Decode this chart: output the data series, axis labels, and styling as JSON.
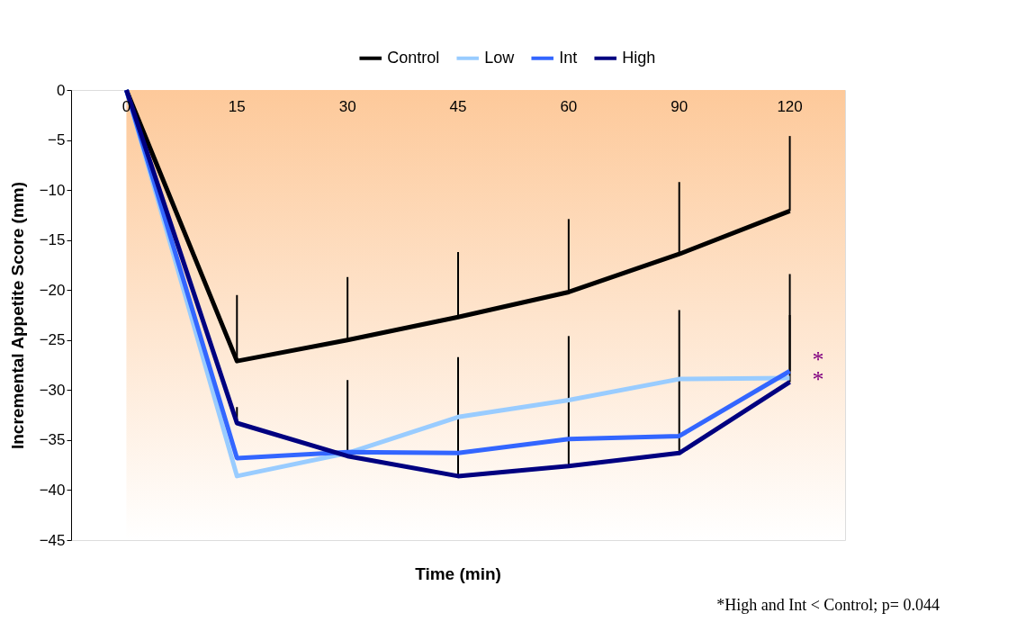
{
  "chart_data": {
    "type": "line",
    "xlabel": "Time (min)",
    "ylabel": "Incremental Appetite Score (mm)",
    "categories": [
      "0",
      "15",
      "30",
      "45",
      "60",
      "90",
      "120"
    ],
    "ylim": [
      -45,
      0
    ],
    "yticks": [
      -45,
      -40,
      -35,
      -30,
      -25,
      -20,
      -15,
      -10,
      -5,
      0
    ],
    "legend": "top",
    "line_style": "solid",
    "series": [
      {
        "name": "Control",
        "color": "#000000",
        "values": [
          0,
          -27.1,
          -25.0,
          -22.7,
          -20.2,
          -16.4,
          -12.1
        ],
        "errors": [
          null,
          [
            -27.1,
            -20.5
          ],
          [
            -25.0,
            -18.7
          ],
          [
            -22.7,
            -16.2
          ],
          [
            -20.2,
            -12.9
          ],
          [
            -16.4,
            -9.2
          ],
          [
            -12.1,
            -4.6
          ]
        ]
      },
      {
        "name": "Low",
        "color": "#99ccff",
        "values": [
          0,
          -38.6,
          -36.3,
          -32.7,
          -31.0,
          -28.9,
          -28.8
        ]
      },
      {
        "name": "Int",
        "color": "#3366ff",
        "values": [
          0,
          -36.8,
          -36.2,
          -36.3,
          -34.9,
          -34.6,
          -28.1
        ],
        "errors": [
          null,
          null,
          null,
          null,
          null,
          null,
          [
            -28.1,
            -18.4
          ]
        ]
      },
      {
        "name": "High",
        "color": "#000080",
        "values": [
          0,
          -33.3,
          -36.6,
          -38.6,
          -37.6,
          -36.3,
          -29.2
        ],
        "errors": [
          null,
          [
            -33.3,
            -31.7
          ],
          [
            -36.6,
            -29.0
          ],
          [
            -38.6,
            -26.7
          ],
          [
            -37.6,
            -24.6
          ],
          [
            -36.3,
            -22.0
          ],
          [
            -29.2,
            -22.5
          ]
        ]
      }
    ],
    "annotations": [
      "*",
      "*",
      "*High and Int < Control; p= 0.044"
    ]
  }
}
